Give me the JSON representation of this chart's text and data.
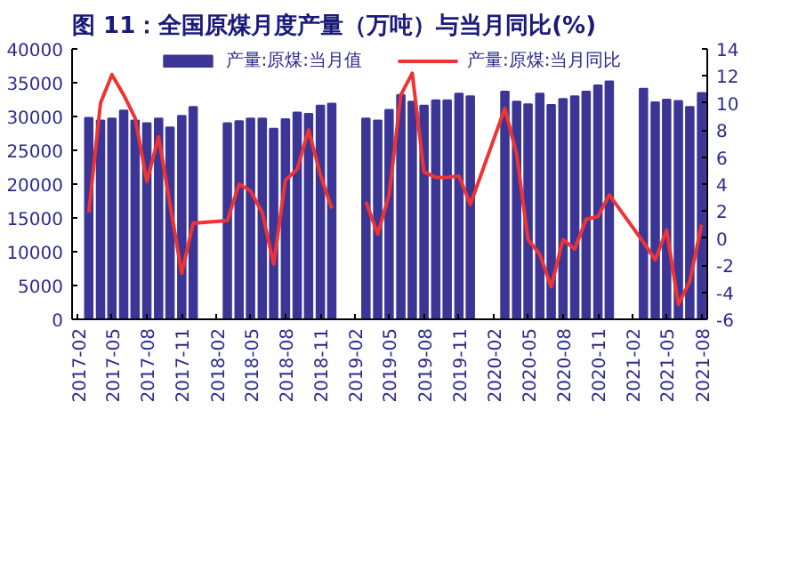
{
  "chart_data": {
    "type": "bar",
    "title": "图 11：全国原煤月度产量（万吨）与当月同比(%)",
    "xlim": [
      "2017-01-16",
      "2021-08-16"
    ],
    "xticks": [
      "2017-02",
      "2017-05",
      "2017-08",
      "2017-11",
      "2018-02",
      "2018-05",
      "2018-08",
      "2018-11",
      "2019-02",
      "2019-05",
      "2019-08",
      "2019-11",
      "2020-02",
      "2020-05",
      "2020-08",
      "2020-11",
      "2021-02",
      "2021-05",
      "2021-08"
    ],
    "ylim": [
      0,
      40000
    ],
    "yticks": [
      0,
      5000,
      10000,
      15000,
      20000,
      25000,
      30000,
      35000,
      40000
    ],
    "y2lim": [
      -6,
      14
    ],
    "y2ticks": [
      -6,
      -4,
      -2,
      0,
      2,
      4,
      6,
      8,
      10,
      12,
      14
    ],
    "grid": false,
    "legend": "top",
    "series": [
      {
        "name": "产量:原煤:当月值",
        "color": "#3b3596",
        "x": [
          "2017-03",
          "2017-04",
          "2017-05",
          "2017-06",
          "2017-07",
          "2017-08",
          "2017-09",
          "2017-10",
          "2017-11",
          "2017-12",
          "2018-03",
          "2018-04",
          "2018-05",
          "2018-06",
          "2018-07",
          "2018-08",
          "2018-09",
          "2018-10",
          "2018-11",
          "2018-12",
          "2019-03",
          "2019-04",
          "2019-05",
          "2019-06",
          "2019-07",
          "2019-08",
          "2019-09",
          "2019-10",
          "2019-11",
          "2019-12",
          "2020-03",
          "2020-04",
          "2020-05",
          "2020-06",
          "2020-07",
          "2020-08",
          "2020-09",
          "2020-10",
          "2020-11",
          "2020-12",
          "2021-03",
          "2021-04",
          "2021-05",
          "2021-06",
          "2021-07",
          "2021-08"
        ],
        "values": [
          29800,
          29400,
          29700,
          30900,
          29400,
          29000,
          29700,
          28400,
          30100,
          31400,
          29000,
          29300,
          29700,
          29700,
          28200,
          29600,
          30600,
          30400,
          31600,
          31900,
          29700,
          29400,
          31000,
          33200,
          32200,
          31600,
          32400,
          32400,
          33400,
          33000,
          33700,
          32200,
          31800,
          33400,
          31700,
          32600,
          33000,
          33700,
          34600,
          35200,
          34100,
          32100,
          32500,
          32300,
          31400,
          33500
        ]
      },
      {
        "name": "产量:原煤:当月同比",
        "color": "#ee3333",
        "type": "line",
        "axis": "y2",
        "x": [
          "2017-03",
          "2017-04",
          "2017-05",
          "2017-06",
          "2017-07",
          "2017-08",
          "2017-09",
          "2017-10",
          "2017-11",
          "2017-12",
          "2018-03",
          "2018-04",
          "2018-05",
          "2018-06",
          "2018-07",
          "2018-08",
          "2018-09",
          "2018-10",
          "2018-11",
          "2018-12",
          "2019-01",
          "2019-03",
          "2019-04",
          "2019-05",
          "2019-06",
          "2019-07",
          "2019-08",
          "2019-09",
          "2019-10",
          "2019-11",
          "2019-12",
          "2020-03",
          "2020-04",
          "2020-05",
          "2020-06",
          "2020-07",
          "2020-08",
          "2020-09",
          "2020-10",
          "2020-11",
          "2020-12",
          "2021-03",
          "2021-04",
          "2021-05",
          "2021-06",
          "2021-07",
          "2021-08"
        ],
        "values": [
          1.9,
          10.0,
          12.1,
          10.6,
          8.9,
          4.2,
          7.5,
          2.5,
          -2.6,
          1.1,
          1.3,
          4.0,
          3.5,
          1.9,
          -1.9,
          4.3,
          5.1,
          8.0,
          4.7,
          2.2,
          null,
          2.7,
          0.3,
          3.2,
          10.6,
          12.2,
          4.9,
          4.5,
          4.5,
          4.6,
          2.5,
          9.6,
          6.2,
          -0.1,
          -1.2,
          -3.6,
          -0.1,
          -0.8,
          1.4,
          1.6,
          3.2,
          -0.3,
          -1.6,
          0.6,
          -4.9,
          -3.2,
          1.0
        ]
      }
    ]
  }
}
